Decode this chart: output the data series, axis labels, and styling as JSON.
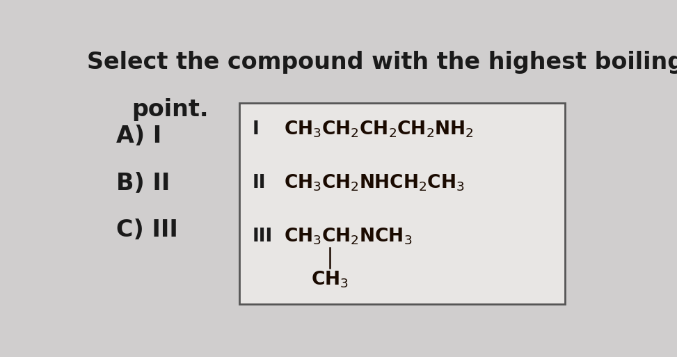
{
  "title_line1": "Select the compound with the highest boiling",
  "title_line2": "point.",
  "options": [
    "A) I",
    "B) II",
    "C) III"
  ],
  "bg_color": "#d0cece",
  "box_bg": "#e8e6e4",
  "box_edge_color": "#555555",
  "text_color": "#1a1a1a",
  "formula_color": "#1a0a00",
  "title_fontsize": 24,
  "option_fontsize": 24,
  "label_fontsize": 19,
  "formula_fontsize": 19,
  "compound_I_label": "I",
  "compound_I_formula": "CH$_3$CH$_2$CH$_2$CH$_2$NH$_2$",
  "compound_II_label": "II",
  "compound_II_formula": "CH$_3$CH$_2$NHCH$_2$CH$_3$",
  "compound_III_label": "III",
  "compound_III_formula": "CH$_3$CH$_2$NCH$_3$",
  "compound_III_branch": "CH$_3$"
}
